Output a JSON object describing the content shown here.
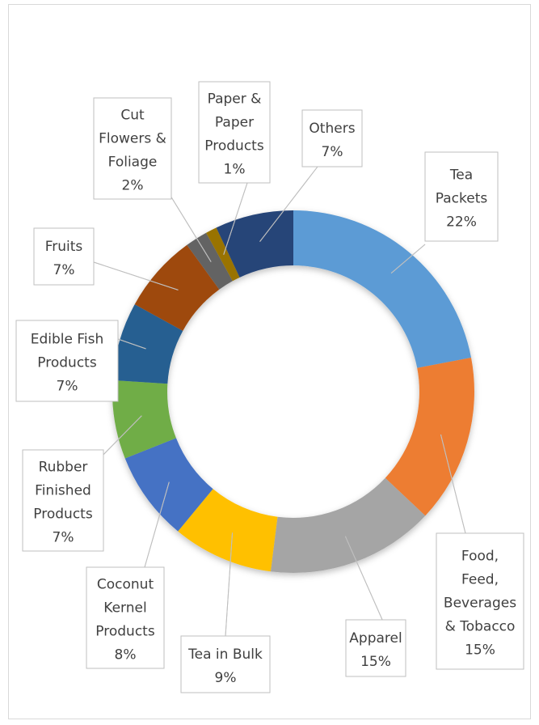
{
  "chart_data": {
    "type": "pie",
    "subtype": "doughnut",
    "title": "",
    "legend": "none",
    "slices": [
      {
        "lines": [
          "Tea",
          "Packets",
          "22%"
        ],
        "value": 22,
        "color": "#5B9BD5"
      },
      {
        "lines": [
          "Food,",
          "Feed,",
          "Beverages",
          "& Tobacco",
          "15%"
        ],
        "value": 15,
        "color": "#ED7D31"
      },
      {
        "lines": [
          "Apparel",
          "15%"
        ],
        "value": 15,
        "color": "#A5A5A5"
      },
      {
        "lines": [
          "Tea in Bulk",
          "9%"
        ],
        "value": 9,
        "color": "#FFC000"
      },
      {
        "lines": [
          "Coconut",
          "Kernel",
          "Products",
          "8%"
        ],
        "value": 8,
        "color": "#4472C4"
      },
      {
        "lines": [
          "Rubber",
          "Finished",
          "Products",
          "7%"
        ],
        "value": 7,
        "color": "#70AD47"
      },
      {
        "lines": [
          "Edible Fish",
          "Products",
          "7%"
        ],
        "value": 7,
        "color": "#255E91"
      },
      {
        "lines": [
          "Fruits",
          "7%"
        ],
        "value": 7,
        "color": "#9E480E"
      },
      {
        "lines": [
          "Cut",
          "Flowers &",
          "Foliage",
          "2%"
        ],
        "value": 2,
        "color": "#636363"
      },
      {
        "lines": [
          "Paper &",
          "Paper",
          "Products",
          "1%"
        ],
        "value": 1,
        "color": "#997300"
      },
      {
        "lines": [
          "Others",
          "7%"
        ],
        "value": 7,
        "color": "#264478"
      }
    ]
  }
}
